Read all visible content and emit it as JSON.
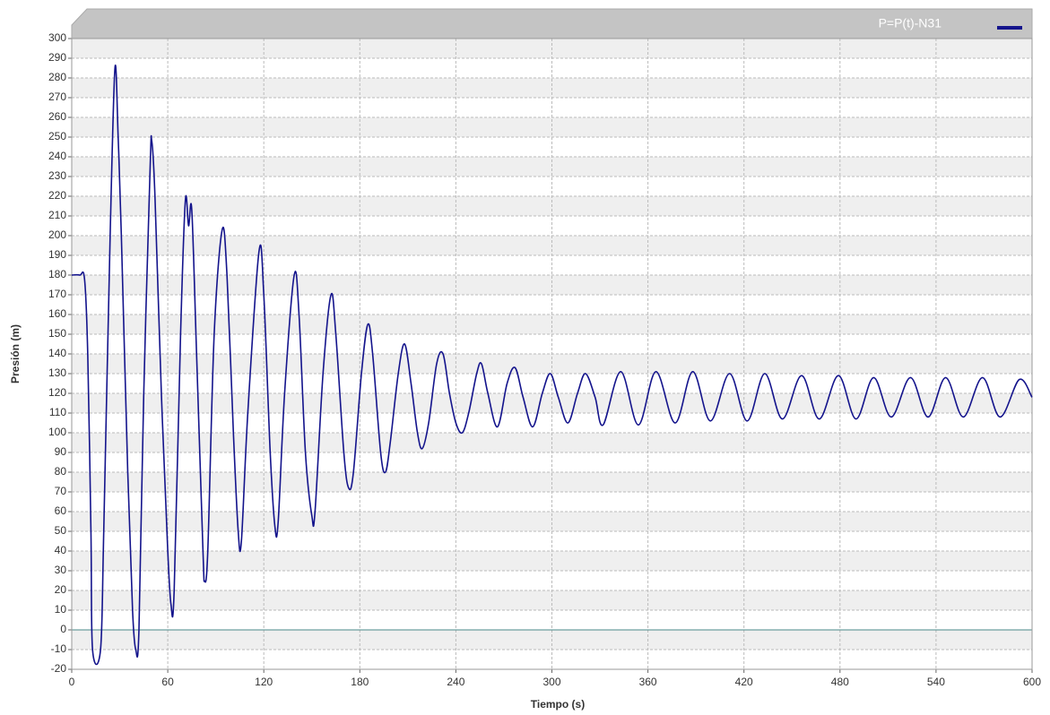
{
  "chart_data": {
    "type": "line",
    "xlabel": "Tiempo (s)",
    "ylabel": "Presión (m)",
    "xlim": [
      0,
      600
    ],
    "ylim": [
      -20,
      300
    ],
    "xticks": [
      0,
      60,
      120,
      180,
      240,
      300,
      360,
      420,
      480,
      540,
      600
    ],
    "yticks": [
      -20,
      -10,
      0,
      10,
      20,
      30,
      40,
      50,
      60,
      70,
      80,
      90,
      100,
      110,
      120,
      130,
      140,
      150,
      160,
      170,
      180,
      190,
      200,
      210,
      220,
      230,
      240,
      250,
      260,
      270,
      280,
      290,
      300
    ],
    "grid": true,
    "legend": "top-right",
    "x": [
      0,
      5,
      8,
      10,
      12,
      13,
      18,
      20,
      24,
      27,
      29,
      31,
      35,
      38,
      40,
      42,
      45,
      49,
      50,
      52,
      56,
      60,
      62,
      64,
      68,
      71,
      73,
      75,
      78,
      82,
      83,
      85,
      89,
      94,
      97,
      101,
      104,
      106,
      110,
      117,
      120,
      124,
      127,
      129,
      133,
      139,
      142,
      146,
      150,
      152,
      157,
      162,
      165,
      170,
      173,
      176,
      181,
      185,
      188,
      193,
      196,
      199,
      204,
      208,
      212,
      216,
      219,
      223,
      228,
      232,
      236,
      240,
      244,
      248,
      253,
      256,
      260,
      266,
      272,
      277,
      282,
      288,
      294,
      299,
      304,
      310,
      316,
      321,
      327,
      332,
      343,
      354,
      365,
      377,
      388,
      399,
      411,
      422,
      433,
      444,
      456,
      467,
      479,
      490,
      501,
      512,
      524,
      535,
      546,
      557,
      569,
      580,
      592,
      600
    ],
    "series": [
      {
        "name": "P=P(t)-N31",
        "color": "#14148c",
        "values": [
          180,
          180,
          178,
          140,
          50,
          -10,
          -10,
          50,
          200,
          285,
          250,
          200,
          80,
          10,
          -10,
          0,
          120,
          235,
          248,
          220,
          120,
          40,
          13,
          20,
          150,
          218,
          205,
          213,
          140,
          40,
          25,
          40,
          150,
          203,
          180,
          100,
          50,
          45,
          110,
          192,
          170,
          90,
          52,
          55,
          120,
          180,
          160,
          90,
          58,
          60,
          130,
          170,
          150,
          90,
          72,
          80,
          130,
          155,
          140,
          90,
          80,
          95,
          130,
          145,
          125,
          100,
          92,
          105,
          135,
          140,
          120,
          105,
          100,
          110,
          130,
          135,
          120,
          103,
          125,
          133,
          118,
          103,
          120,
          130,
          118,
          105,
          120,
          130,
          118,
          104,
          131,
          104,
          131,
          105,
          131,
          106,
          130,
          106,
          130,
          107,
          129,
          107,
          129,
          107,
          128,
          108,
          128,
          108,
          128,
          108,
          128,
          108,
          127,
          118
        ]
      }
    ]
  }
}
